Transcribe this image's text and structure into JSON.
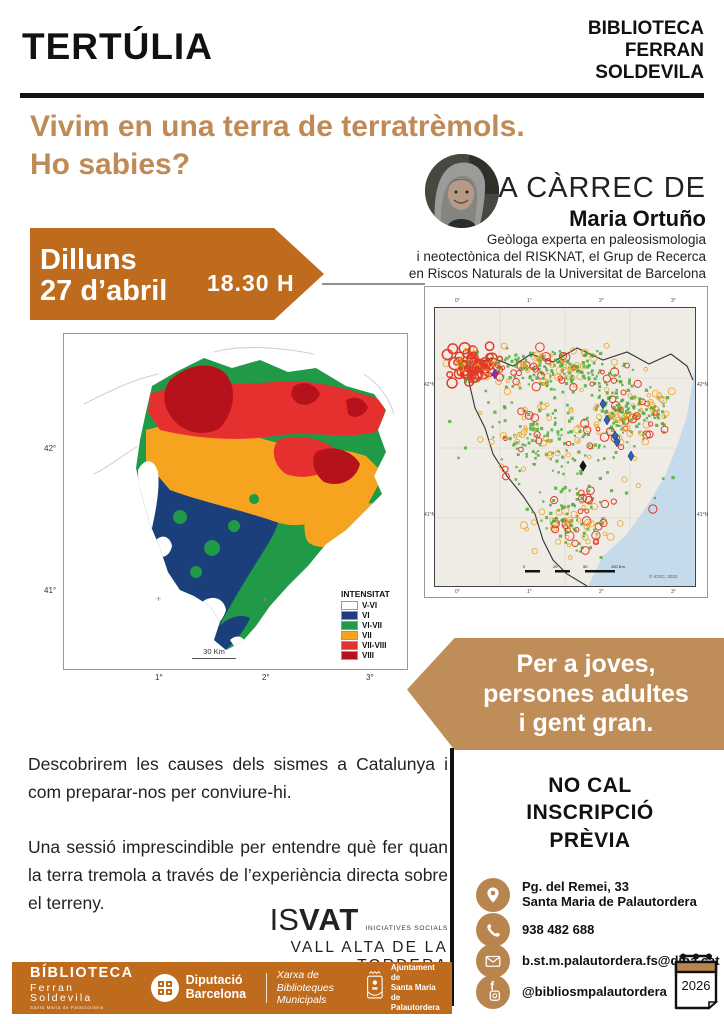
{
  "header": {
    "event_type": "TERTÚLIA",
    "library_lines": [
      "BIBLIOTECA",
      "FERRAN",
      "SOLDEVILA"
    ]
  },
  "title": {
    "line1": "Vivim en una terra de terratrèmols.",
    "line2": "Ho sabies?"
  },
  "speaker": {
    "heading": "A CÀRREC DE",
    "name": "Maria Ortuño",
    "bio_lines": [
      "Geòloga experta en paleosismologia",
      "i neotectònica del RISKNAT, el Grup de Recerca",
      "en Riscos Naturals de la Universitat de Barcelona"
    ]
  },
  "date_banner": {
    "day": "Dilluns",
    "date": "27 d’abril",
    "time": "18.30 H"
  },
  "intensity_map": {
    "legend_title": "INTENSITAT",
    "legend": [
      {
        "label": "V-VI",
        "color": "#ffffff"
      },
      {
        "label": "VI",
        "color": "#1b3f7a"
      },
      {
        "label": "VI-VII",
        "color": "#219a47"
      },
      {
        "label": "VII",
        "color": "#f6a41f"
      },
      {
        "label": "VII-VIII",
        "color": "#e63030"
      },
      {
        "label": "VIII",
        "color": "#b5121b"
      }
    ],
    "y_ticks": [
      "42°",
      "41°"
    ],
    "x_ticks": [
      "1°",
      "2°",
      "3°"
    ],
    "scale_label": "30 Km"
  },
  "epicenter_map": {
    "ticks_top": [
      "0°",
      "1°",
      "2°",
      "3°"
    ],
    "ticks_bottom": [
      "0°",
      "1°",
      "2°",
      "3°"
    ],
    "ticks_left": [
      "42°N",
      "41°N"
    ],
    "ticks_right": [
      "42°N",
      "41°N"
    ],
    "scale_labels": [
      "0",
      "25",
      "50",
      "100 Km"
    ],
    "copyright": "© ICGC, 2022",
    "point_colors": {
      "green": "#4aa832",
      "orange": "#eda426",
      "red": "#e23a28",
      "blue": "#2b62c9",
      "purple": "#9a2bb5",
      "black": "#111111",
      "sea": "#c5dbec",
      "land": "#efece6"
    }
  },
  "audience_banner": {
    "lines": [
      "Per a joves,",
      "persones adultes",
      "i gent gran."
    ]
  },
  "description": {
    "p1": "Descobrirem les causes dels sismes a Catalunya i com preparar-nos per conviure-hi.",
    "p2": "Una sessió imprescindible per entendre què fer quan la terra tremola a través de l’experiència directa sobre el terreny."
  },
  "no_registration": {
    "lines": [
      "NO CAL",
      "INSCRIPCIÓ",
      "PRÈVIA"
    ]
  },
  "contact": {
    "address_line1": "Pg. del Remei, 33",
    "address_line2": "Santa Maria de Palautordera",
    "phone": "938 482 688",
    "email": "b.st.m.palautordera.fs@diba.cat",
    "social": "@bibliosmpalautordera"
  },
  "isvat": {
    "is": "IS",
    "vat": "VAT",
    "tagline": "INICIATIVES SOCIALS",
    "subtitle": "VALL ALTA DE LA TORDERA"
  },
  "footer": {
    "biblioteca": {
      "line1": "BÍBLIOTECA",
      "line2": "Ferran Soldevila",
      "line3": "Santa Maria de Palautordera"
    },
    "diputacio": {
      "line1": "Diputació",
      "line2": "Barcelona"
    },
    "xarxa": {
      "line1": "Xarxa de Biblioteques",
      "line2": "Municipals"
    },
    "ajuntament": {
      "lines": [
        "Ajuntament de",
        "Santa Maria de",
        "Palautordera"
      ]
    }
  },
  "calendar": {
    "year": "2026"
  },
  "colors": {
    "accent_dark": "#bf6b1d",
    "accent_tan": "#bf8d58",
    "title_tan": "#c08a56",
    "text": "#1a1a1a"
  }
}
